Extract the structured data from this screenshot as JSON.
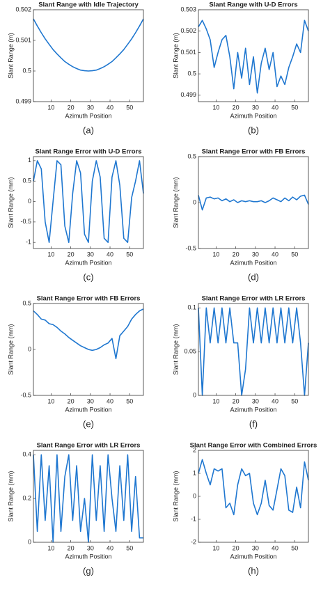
{
  "chart_data": [
    {
      "type": "line",
      "title": "Slant Range with Idle Trajectory",
      "xlabel": "Azimuth Position",
      "ylabel": "Slant Range (m)",
      "caption": "(a)",
      "color": "#1f77d0",
      "x": [
        1,
        3,
        5,
        7,
        9,
        11,
        13,
        15,
        17,
        19,
        21,
        23,
        25,
        27,
        29,
        31,
        33,
        35,
        37,
        39,
        41,
        43,
        45,
        47,
        49,
        51,
        53,
        55,
        57
      ],
      "values": [
        0.5017,
        0.50147,
        0.50125,
        0.50105,
        0.50087,
        0.5007,
        0.50056,
        0.50043,
        0.50031,
        0.50022,
        0.50014,
        0.50008,
        0.50003,
        0.50001,
        0.5,
        0.50001,
        0.50003,
        0.50008,
        0.50014,
        0.50022,
        0.50031,
        0.50043,
        0.50056,
        0.5007,
        0.50087,
        0.50105,
        0.50125,
        0.50147,
        0.5017
      ],
      "xlim": [
        1,
        57
      ],
      "xticks": [
        10,
        20,
        30,
        40,
        50
      ],
      "ylim": [
        0.499,
        0.502
      ],
      "yticks": [
        0.499,
        0.5,
        0.501,
        0.502
      ]
    },
    {
      "type": "line",
      "title": "Slant Range with U-D Errors",
      "xlabel": "Azimuth Position",
      "ylabel": "Slant Range (m)",
      "caption": "(b)",
      "color": "#1f77d0",
      "x": [
        1,
        3,
        5,
        7,
        9,
        11,
        13,
        15,
        17,
        19,
        21,
        23,
        25,
        27,
        29,
        31,
        33,
        35,
        37,
        39,
        41,
        43,
        45,
        47,
        49,
        51,
        53,
        55,
        57
      ],
      "values": [
        0.5022,
        0.5025,
        0.5021,
        0.5016,
        0.5003,
        0.501,
        0.5016,
        0.5018,
        0.5008,
        0.4993,
        0.501,
        0.4998,
        0.5012,
        0.4995,
        0.5008,
        0.4991,
        0.5005,
        0.5012,
        0.5002,
        0.501,
        0.4994,
        0.4999,
        0.4995,
        0.5003,
        0.5008,
        0.5014,
        0.501,
        0.5025,
        0.502
      ],
      "xlim": [
        1,
        57
      ],
      "xticks": [
        10,
        20,
        30,
        40,
        50
      ],
      "ylim": [
        0.4987,
        0.503
      ],
      "yticks": [
        0.499,
        0.5,
        0.501,
        0.502,
        0.503
      ]
    },
    {
      "type": "line",
      "title": "Slant Range Error with U-D Errors",
      "xlabel": "Azimuth Position",
      "ylabel": "Slant Range (mm)",
      "caption": "(c)",
      "color": "#1f77d0",
      "x": [
        1,
        3,
        5,
        7,
        9,
        11,
        13,
        15,
        17,
        19,
        21,
        23,
        25,
        27,
        29,
        31,
        33,
        35,
        37,
        39,
        41,
        43,
        45,
        47,
        49,
        51,
        53,
        55,
        57
      ],
      "values": [
        0.5,
        1,
        0.8,
        -0.5,
        -1,
        0,
        1,
        0.9,
        -0.6,
        -1,
        0.2,
        1,
        0.7,
        -0.8,
        -1,
        0.5,
        1,
        0.6,
        -0.9,
        -1,
        0.6,
        1,
        0.4,
        -0.9,
        -1,
        0.1,
        0.5,
        1,
        0.2
      ],
      "xlim": [
        1,
        57
      ],
      "xticks": [
        10,
        20,
        30,
        40,
        50
      ],
      "ylim": [
        -1.15,
        1.1
      ],
      "yticks": [
        -1,
        -0.5,
        0,
        0.5,
        1
      ]
    },
    {
      "type": "line",
      "title": "Slant Range Error with FB Errors",
      "xlabel": "Azimuth Position",
      "ylabel": "Slant Range (mm)",
      "caption": "(d)",
      "color": "#1f77d0",
      "x": [
        1,
        3,
        5,
        7,
        9,
        11,
        13,
        15,
        17,
        19,
        21,
        23,
        25,
        27,
        29,
        31,
        33,
        35,
        37,
        39,
        41,
        43,
        45,
        47,
        49,
        51,
        53,
        55,
        57
      ],
      "values": [
        0.08,
        -0.08,
        0.05,
        0.06,
        0.04,
        0.05,
        0.02,
        0.04,
        0.01,
        0.03,
        0,
        0.02,
        0.01,
        0.02,
        0.01,
        0.01,
        0.02,
        0,
        0.02,
        0.05,
        0.03,
        0.01,
        0.05,
        0.02,
        0.06,
        0.03,
        0.07,
        0.08,
        -0.02
      ],
      "xlim": [
        1,
        57
      ],
      "xticks": [
        10,
        20,
        30,
        40,
        50
      ],
      "ylim": [
        -0.5,
        0.5
      ],
      "yticks": [
        -0.5,
        0,
        0.5
      ]
    },
    {
      "type": "line",
      "title": "Slant Range Error with FB Errors",
      "xlabel": "Azimuth Position",
      "ylabel": "Slant Range (mm)",
      "caption": "(e)",
      "color": "#1f77d0",
      "x": [
        1,
        3,
        5,
        7,
        9,
        11,
        13,
        15,
        17,
        19,
        21,
        23,
        25,
        27,
        29,
        31,
        33,
        35,
        37,
        39,
        41,
        43,
        45,
        47,
        49,
        51,
        53,
        55,
        57
      ],
      "values": [
        0.42,
        0.38,
        0.33,
        0.32,
        0.28,
        0.27,
        0.24,
        0.2,
        0.17,
        0.13,
        0.1,
        0.07,
        0.04,
        0.02,
        0,
        -0.01,
        0,
        0.02,
        0.05,
        0.07,
        0.12,
        -0.1,
        0.15,
        0.2,
        0.25,
        0.33,
        0.38,
        0.42,
        0.44
      ],
      "xlim": [
        1,
        57
      ],
      "xticks": [
        10,
        20,
        30,
        40,
        50
      ],
      "ylim": [
        -0.5,
        0.5
      ],
      "yticks": [
        -0.5,
        0,
        0.5
      ]
    },
    {
      "type": "line",
      "title": "Slant Range Error with LR Errors",
      "xlabel": "Azimuth Position",
      "ylabel": "Slant Range (mm)",
      "caption": "(f)",
      "color": "#1f77d0",
      "x": [
        1,
        3,
        5,
        7,
        9,
        11,
        13,
        15,
        17,
        19,
        21,
        23,
        25,
        27,
        29,
        31,
        33,
        35,
        37,
        39,
        41,
        43,
        45,
        47,
        49,
        51,
        53,
        55,
        57
      ],
      "values": [
        0.1,
        0,
        0.1,
        0.06,
        0.1,
        0.06,
        0.1,
        0.06,
        0.1,
        0.06,
        0.06,
        0,
        0.03,
        0.1,
        0.06,
        0.1,
        0.06,
        0.1,
        0.06,
        0.1,
        0.06,
        0.1,
        0.06,
        0.1,
        0.06,
        0.1,
        0.06,
        0,
        0.06
      ],
      "xlim": [
        1,
        57
      ],
      "xticks": [
        10,
        20,
        30,
        40,
        50
      ],
      "ylim": [
        0,
        0.105
      ],
      "yticks": [
        0,
        0.05,
        0.1
      ]
    },
    {
      "type": "line",
      "title": "Slant Range Error with LR Errors",
      "xlabel": "Azimuth Position",
      "ylabel": "Slant Range (mm)",
      "caption": "(g)",
      "color": "#1f77d0",
      "x": [
        1,
        3,
        5,
        7,
        9,
        11,
        13,
        15,
        17,
        19,
        21,
        23,
        25,
        27,
        29,
        31,
        33,
        35,
        37,
        39,
        41,
        43,
        45,
        47,
        49,
        51,
        53,
        55,
        57
      ],
      "values": [
        0.4,
        0.05,
        0.4,
        0.1,
        0.35,
        0,
        0.4,
        0.05,
        0.3,
        0.4,
        0.1,
        0.35,
        0.05,
        0.2,
        0,
        0.4,
        0.1,
        0.35,
        0.05,
        0.4,
        0.2,
        0.05,
        0.35,
        0.1,
        0.4,
        0.05,
        0.3,
        0.02,
        0.02
      ],
      "xlim": [
        1,
        57
      ],
      "xticks": [
        10,
        20,
        30,
        40,
        50
      ],
      "ylim": [
        0,
        0.42
      ],
      "yticks": [
        0,
        0.2,
        0.4
      ]
    },
    {
      "type": "line",
      "title": "Slant Range Error with Combined Errors",
      "xlabel": "Azimuth Position",
      "ylabel": "Slant Range (mm)",
      "caption": "(h)",
      "color": "#1f77d0",
      "x": [
        1,
        3,
        5,
        7,
        9,
        11,
        13,
        15,
        17,
        19,
        21,
        23,
        25,
        27,
        29,
        31,
        33,
        35,
        37,
        39,
        41,
        43,
        45,
        47,
        49,
        51,
        53,
        55,
        57
      ],
      "values": [
        1,
        1.6,
        1,
        0.5,
        1.2,
        1.1,
        1.2,
        -0.5,
        -0.3,
        -0.8,
        0.5,
        1.2,
        0.9,
        1,
        -0.3,
        -0.8,
        -0.3,
        0.7,
        -0.4,
        -0.6,
        0.3,
        1.2,
        0.9,
        -0.6,
        -0.7,
        0.4,
        -0.5,
        1.5,
        0.7
      ],
      "xlim": [
        1,
        57
      ],
      "xticks": [
        10,
        20,
        30,
        40,
        50
      ],
      "ylim": [
        -2,
        2
      ],
      "yticks": [
        -2,
        -1,
        0,
        1,
        2
      ]
    }
  ]
}
